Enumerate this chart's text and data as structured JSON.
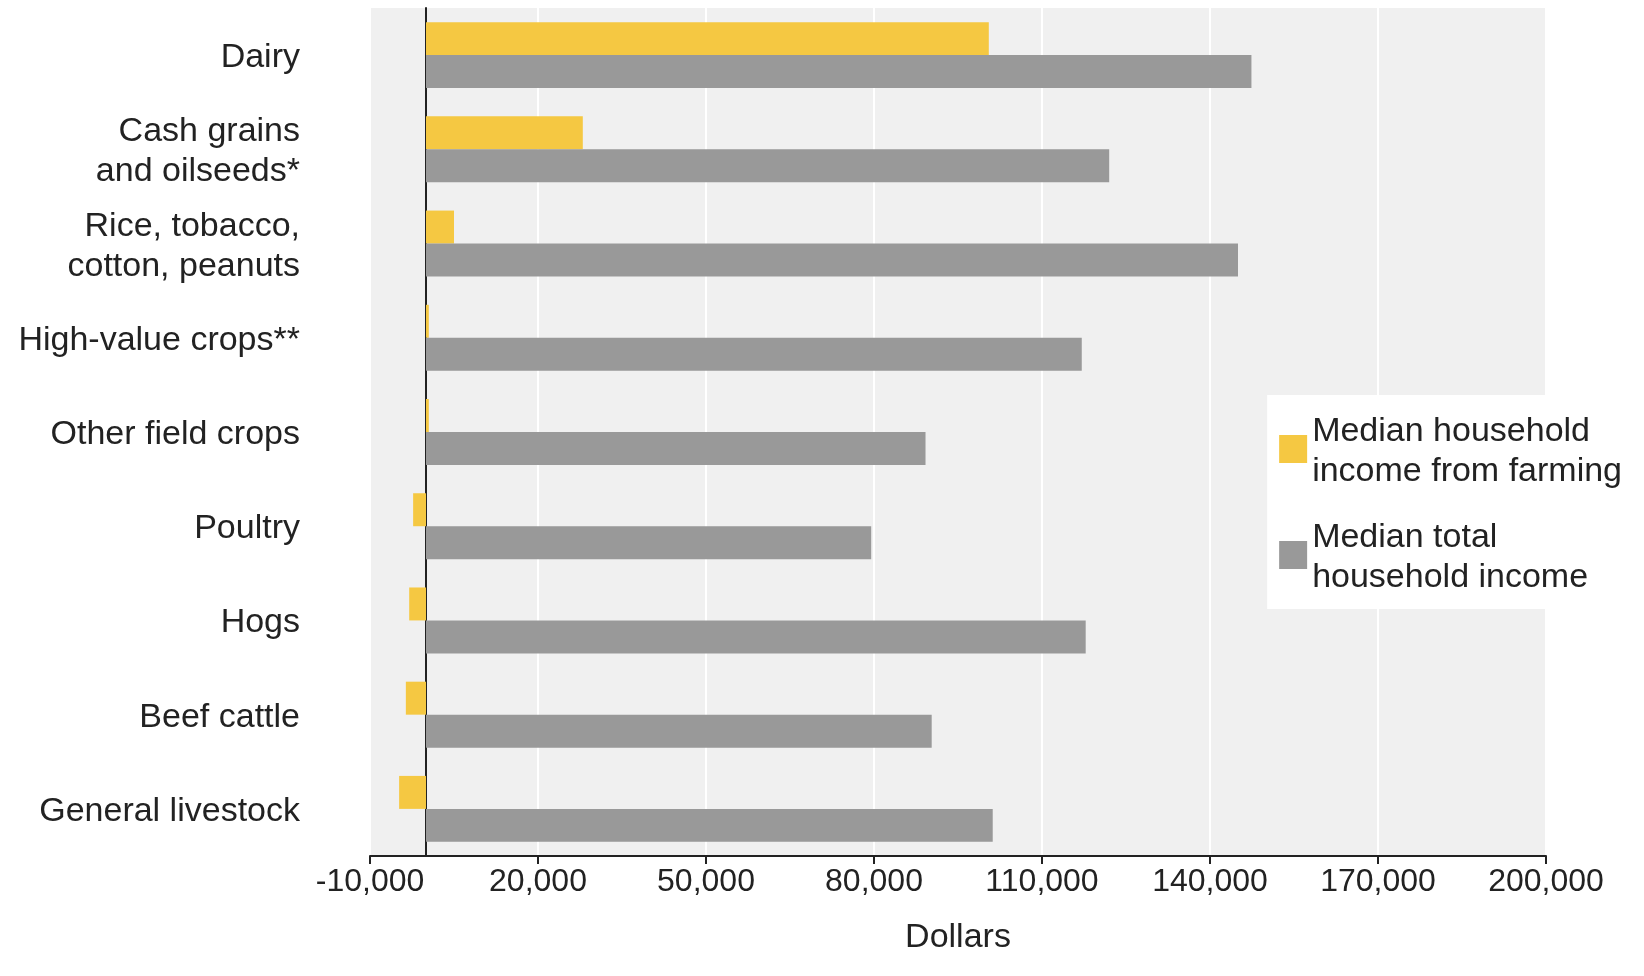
{
  "chart_data": {
    "type": "bar",
    "orientation": "horizontal",
    "xlabel": "Dollars",
    "categories": [
      "Dairy",
      "Cash grains\nand oilseeds*",
      "Rice, tobacco,\ncotton, peanuts",
      "High-value crops**",
      "Other field crops",
      "Poultry",
      "Hogs",
      "Beef cattle",
      "General livestock"
    ],
    "series": [
      {
        "name": "Median household\nincome from farming",
        "color": "#f5c842",
        "values": [
          100500,
          28000,
          5000,
          500,
          500,
          -2300,
          -3000,
          -3600,
          -4800
        ]
      },
      {
        "name": "Median total\nhousehold income",
        "color": "#999999",
        "values": [
          147400,
          122000,
          145000,
          117100,
          89200,
          79500,
          117800,
          90300,
          101200
        ]
      }
    ],
    "xlim": [
      -10000,
      200000
    ],
    "xticks": [
      {
        "value": -10000,
        "label": "-10,000"
      },
      {
        "value": 20000,
        "label": "20,000"
      },
      {
        "value": 50000,
        "label": "50,000"
      },
      {
        "value": 80000,
        "label": "80,000"
      },
      {
        "value": 110000,
        "label": "110,000"
      },
      {
        "value": 140000,
        "label": "140,000"
      },
      {
        "value": 170000,
        "label": "170,000"
      },
      {
        "value": 200000,
        "label": "200,000"
      }
    ],
    "grid": "x",
    "legend": "right"
  }
}
